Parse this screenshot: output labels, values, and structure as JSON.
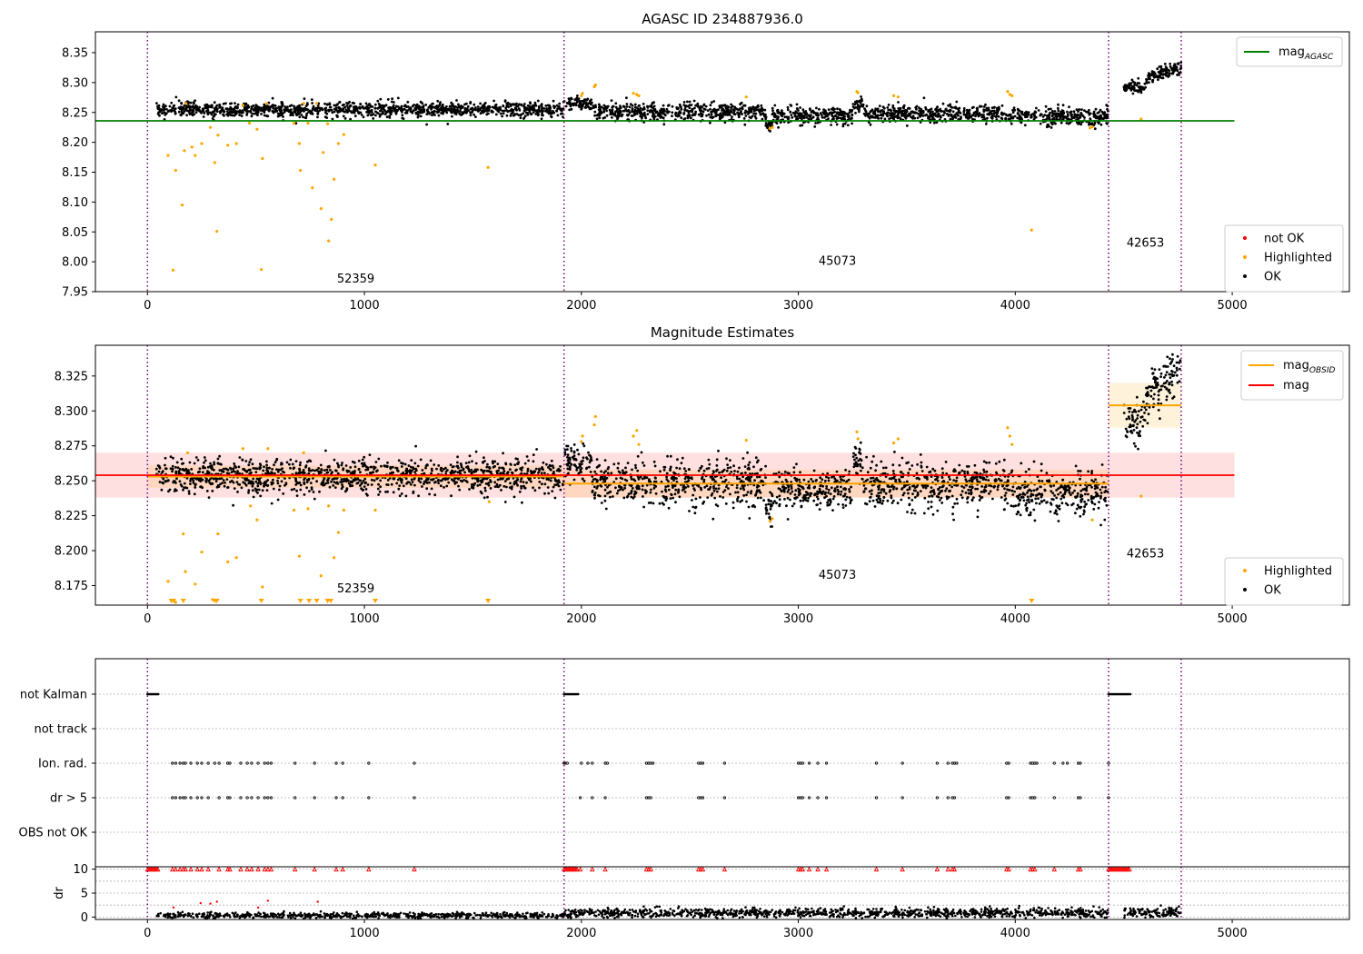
{
  "chart_data": [
    {
      "type": "scatter",
      "title": "AGASC ID 234887936.0",
      "xlim": [
        -240,
        5540
      ],
      "ylim": [
        7.95,
        8.385
      ],
      "xticks": [
        "0",
        "1000",
        "2000",
        "3000",
        "4000",
        "5000"
      ],
      "yticks": [
        "7.95",
        "8.00",
        "8.05",
        "8.10",
        "8.15",
        "8.20",
        "8.25",
        "8.30",
        "8.35"
      ],
      "mag_agasc": 8.236,
      "mag_agasc_x_range": [
        -240,
        5010
      ],
      "obsid_boundaries": [
        0,
        1920,
        4430,
        4765
      ],
      "obsid_labels": [
        {
          "text": "52359",
          "x": 960,
          "y": 7.965
        },
        {
          "text": "45073",
          "x": 3180,
          "y": 7.995
        },
        {
          "text": "42653",
          "x": 4600,
          "y": 8.025
        }
      ],
      "legend_top": [
        {
          "label": "mag",
          "sub": "AGASC",
          "color": "#008000"
        }
      ],
      "legend_bottom": [
        {
          "label": "not OK",
          "color": "#ff0000"
        },
        {
          "label": "Highlighted",
          "color": "#ffa500"
        },
        {
          "label": "OK",
          "color": "#000000"
        }
      ],
      "highlighted_points": [
        [
          95,
          8.178
        ],
        [
          118,
          7.986
        ],
        [
          130,
          8.153
        ],
        [
          160,
          8.095
        ],
        [
          170,
          8.186
        ],
        [
          178,
          8.265
        ],
        [
          205,
          8.192
        ],
        [
          220,
          8.178
        ],
        [
          250,
          8.198
        ],
        [
          290,
          8.225
        ],
        [
          310,
          8.166
        ],
        [
          320,
          8.051
        ],
        [
          325,
          8.212
        ],
        [
          370,
          8.195
        ],
        [
          410,
          8.198
        ],
        [
          440,
          8.262
        ],
        [
          470,
          8.232
        ],
        [
          505,
          8.222
        ],
        [
          525,
          7.987
        ],
        [
          530,
          8.173
        ],
        [
          550,
          8.265
        ],
        [
          675,
          8.232
        ],
        [
          700,
          8.198
        ],
        [
          705,
          8.153
        ],
        [
          720,
          8.265
        ],
        [
          740,
          8.232
        ],
        [
          760,
          8.124
        ],
        [
          780,
          8.265
        ],
        [
          800,
          8.089
        ],
        [
          810,
          8.183
        ],
        [
          830,
          8.231
        ],
        [
          835,
          8.035
        ],
        [
          848,
          8.071
        ],
        [
          860,
          8.138
        ],
        [
          880,
          8.198
        ],
        [
          905,
          8.213
        ],
        [
          1050,
          8.162
        ],
        [
          1570,
          8.158
        ],
        [
          4075,
          8.053
        ],
        [
          4580,
          8.239
        ],
        [
          2000,
          8.278
        ],
        [
          2005,
          8.282
        ],
        [
          2060,
          8.293
        ],
        [
          2065,
          8.296
        ],
        [
          2240,
          8.282
        ],
        [
          2255,
          8.28
        ],
        [
          2265,
          8.278
        ],
        [
          2760,
          8.276
        ],
        [
          2870,
          8.223
        ],
        [
          2880,
          8.225
        ],
        [
          3270,
          8.285
        ],
        [
          3275,
          8.283
        ],
        [
          3440,
          8.278
        ],
        [
          3460,
          8.276
        ],
        [
          3965,
          8.285
        ],
        [
          3975,
          8.28
        ],
        [
          3985,
          8.278
        ],
        [
          4345,
          8.224
        ],
        [
          4355,
          8.226
        ]
      ],
      "ok_segments": [
        {
          "x": [
            40,
            1920
          ],
          "y": 8.255,
          "noise": 0.006,
          "n": 1200
        },
        {
          "x": [
            1920,
            2050
          ],
          "y": 8.265,
          "noise": 0.006,
          "n": 80
        },
        {
          "x": [
            2050,
            2850
          ],
          "y": 8.252,
          "noise": 0.007,
          "n": 500
        },
        {
          "x": [
            2850,
            2880
          ],
          "y": 8.228,
          "noise": 0.006,
          "n": 25
        },
        {
          "x": [
            2880,
            3250
          ],
          "y": 8.245,
          "noise": 0.007,
          "n": 240
        },
        {
          "x": [
            3250,
            3300
          ],
          "y": 8.262,
          "noise": 0.006,
          "n": 35
        },
        {
          "x": [
            3300,
            3950
          ],
          "y": 8.248,
          "noise": 0.007,
          "n": 420
        },
        {
          "x": [
            3950,
            4430
          ],
          "y": 8.243,
          "noise": 0.007,
          "n": 300
        },
        {
          "x": [
            4500,
            4600
          ],
          "y": 8.29,
          "noise": 0.006,
          "n": 60
        },
        {
          "x": [
            4600,
            4765
          ],
          "y": 8.315,
          "noise": 0.006,
          "n": 110
        }
      ]
    },
    {
      "type": "scatter",
      "title": "Magnitude Estimates",
      "xlim": [
        -240,
        5540
      ],
      "ylim": [
        8.161,
        8.347
      ],
      "xticks": [
        "0",
        "1000",
        "2000",
        "3000",
        "4000",
        "5000"
      ],
      "yticks": [
        "8.175",
        "8.200",
        "8.225",
        "8.250",
        "8.275",
        "8.300",
        "8.325"
      ],
      "mag": 8.254,
      "mag_band": [
        8.238,
        8.27
      ],
      "mag_x_range": [
        -240,
        5010
      ],
      "obsid_mags": [
        {
          "x": [
            0,
            1920
          ],
          "mag": 8.253,
          "band": [
            8.245,
            8.261
          ]
        },
        {
          "x": [
            1920,
            4430
          ],
          "mag": 8.248,
          "band": [
            8.238,
            8.258
          ]
        },
        {
          "x": [
            4430,
            4765
          ],
          "mag": 8.304,
          "band": [
            8.288,
            8.32
          ]
        }
      ],
      "obsid_boundaries": [
        0,
        1920,
        4430,
        4765
      ],
      "obsid_labels": [
        {
          "text": "52359",
          "x": 960,
          "y": 8.17
        },
        {
          "text": "45073",
          "x": 3180,
          "y": 8.18
        },
        {
          "text": "42653",
          "x": 4600,
          "y": 8.195
        }
      ],
      "legend_top": [
        {
          "label": "mag",
          "sub": "OBSID",
          "color": "#ffa500"
        },
        {
          "label": "mag",
          "sub": "",
          "color": "#ff0000"
        }
      ],
      "legend_bottom": [
        {
          "label": "Highlighted",
          "color": "#ffa500"
        },
        {
          "label": "OK",
          "color": "#000000"
        }
      ],
      "lower_limit_markers": [
        110,
        120,
        165,
        310,
        320,
        525,
        705,
        745,
        780,
        830,
        845,
        1050,
        1570,
        4075
      ],
      "highlighted_points": [
        [
          95,
          8.178
        ],
        [
          130,
          8.163
        ],
        [
          165,
          8.212
        ],
        [
          175,
          8.185
        ],
        [
          185,
          8.27
        ],
        [
          220,
          8.176
        ],
        [
          250,
          8.199
        ],
        [
          300,
          8.165
        ],
        [
          325,
          8.212
        ],
        [
          370,
          8.192
        ],
        [
          410,
          8.195
        ],
        [
          440,
          8.273
        ],
        [
          475,
          8.232
        ],
        [
          505,
          8.222
        ],
        [
          530,
          8.174
        ],
        [
          555,
          8.273
        ],
        [
          675,
          8.229
        ],
        [
          700,
          8.196
        ],
        [
          720,
          8.27
        ],
        [
          740,
          8.23
        ],
        [
          800,
          8.182
        ],
        [
          835,
          8.232
        ],
        [
          860,
          8.195
        ],
        [
          880,
          8.213
        ],
        [
          905,
          8.229
        ],
        [
          1050,
          8.229
        ],
        [
          1575,
          8.235
        ],
        [
          4580,
          8.239
        ],
        [
          2000,
          8.278
        ],
        [
          2005,
          8.282
        ],
        [
          2060,
          8.29
        ],
        [
          2065,
          8.296
        ],
        [
          2240,
          8.282
        ],
        [
          2255,
          8.286
        ],
        [
          2265,
          8.276
        ],
        [
          2760,
          8.279
        ],
        [
          2870,
          8.221
        ],
        [
          2880,
          8.223
        ],
        [
          3270,
          8.285
        ],
        [
          3275,
          8.28
        ],
        [
          3440,
          8.277
        ],
        [
          3460,
          8.28
        ],
        [
          3965,
          8.288
        ],
        [
          3975,
          8.282
        ],
        [
          3985,
          8.276
        ],
        [
          4355,
          8.222
        ]
      ],
      "ok_segments": [
        {
          "x": [
            40,
            1920
          ],
          "y": 8.253,
          "noise": 0.006,
          "n": 1200
        },
        {
          "x": [
            1920,
            2050
          ],
          "y": 8.262,
          "noise": 0.007,
          "n": 80
        },
        {
          "x": [
            2050,
            2850
          ],
          "y": 8.249,
          "noise": 0.008,
          "n": 500
        },
        {
          "x": [
            2850,
            2880
          ],
          "y": 8.228,
          "noise": 0.006,
          "n": 25
        },
        {
          "x": [
            2880,
            3250
          ],
          "y": 8.243,
          "noise": 0.007,
          "n": 240
        },
        {
          "x": [
            3250,
            3300
          ],
          "y": 8.262,
          "noise": 0.007,
          "n": 35
        },
        {
          "x": [
            3300,
            3950
          ],
          "y": 8.247,
          "noise": 0.008,
          "n": 420
        },
        {
          "x": [
            3950,
            4430
          ],
          "y": 8.242,
          "noise": 0.008,
          "n": 300
        },
        {
          "x": [
            4500,
            4600
          ],
          "y": 8.29,
          "noise": 0.007,
          "n": 60
        },
        {
          "x": [
            4600,
            4765
          ],
          "y": 8.318,
          "noise": 0.008,
          "n": 110
        }
      ]
    },
    {
      "type": "scatter",
      "title": "",
      "xlim": [
        -240,
        5540
      ],
      "flag_rows": [
        "not Kalman",
        "not track",
        "Ion. rad.",
        "dr > 5",
        "OBS not OK"
      ],
      "obsid_boundaries": [
        0,
        1920,
        4430,
        4765
      ],
      "not_kalman_ranges": [
        [
          0,
          50
        ],
        [
          1920,
          1985
        ],
        [
          4430,
          4530
        ]
      ],
      "ion_rad_x": [
        115,
        130,
        150,
        165,
        175,
        200,
        230,
        250,
        280,
        310,
        330,
        370,
        380,
        430,
        460,
        480,
        510,
        540,
        555,
        570,
        680,
        770,
        870,
        900,
        1020,
        1230,
        1920,
        1925,
        1935,
        2000,
        2030,
        2050,
        2110,
        2120,
        2300,
        2310,
        2320,
        2330,
        2540,
        2550,
        2560,
        2660,
        3000,
        3010,
        3020,
        3050,
        3090,
        3130,
        3360,
        3480,
        3640,
        3690,
        3710,
        3720,
        3730,
        3960,
        3970,
        4070,
        4080,
        4090,
        4100,
        4180,
        4220,
        4240,
        4290,
        4300
      ],
      "dr5_x": [
        115,
        130,
        150,
        165,
        175,
        200,
        230,
        250,
        280,
        330,
        370,
        380,
        430,
        460,
        480,
        510,
        540,
        555,
        570,
        680,
        770,
        870,
        900,
        1020,
        1230,
        1995,
        2050,
        2110,
        2300,
        2310,
        2320,
        2540,
        2550,
        2560,
        2660,
        3000,
        3010,
        3020,
        3050,
        3090,
        3130,
        3360,
        3480,
        3640,
        3690,
        3710,
        3720,
        3960,
        3970,
        4070,
        4080,
        4090,
        4180,
        4290,
        4300
      ]
    },
    {
      "type": "scatter",
      "title": "",
      "xlim": [
        -240,
        5540
      ],
      "ylim": [
        -0.5,
        10.5
      ],
      "ylabel": "dr",
      "xticks": [
        "0",
        "1000",
        "2000",
        "3000",
        "4000",
        "5000"
      ],
      "yticks": [
        "0",
        "5",
        "10"
      ],
      "obsid_boundaries": [
        0,
        1920,
        4430,
        4765
      ],
      "capped_ranges": [
        [
          0,
          50
        ],
        [
          1920,
          1985
        ],
        [
          4430,
          4530
        ]
      ],
      "capped_x": [
        115,
        130,
        150,
        165,
        175,
        200,
        230,
        250,
        280,
        330,
        370,
        380,
        430,
        460,
        480,
        510,
        540,
        555,
        570,
        680,
        770,
        870,
        900,
        1020,
        1230,
        1995,
        2050,
        2110,
        2300,
        2310,
        2320,
        2540,
        2550,
        2560,
        2660,
        3000,
        3010,
        3020,
        3050,
        3090,
        3130,
        3360,
        3480,
        3640,
        3690,
        3710,
        3720,
        3960,
        3970,
        4070,
        4080,
        4090,
        4180,
        4290,
        4300
      ],
      "red_points": [
        [
          245,
          2.9
        ],
        [
          290,
          2.8
        ],
        [
          320,
          3.2
        ],
        [
          510,
          2.0
        ],
        [
          555,
          3.4
        ],
        [
          785,
          3.2
        ],
        [
          120,
          2.0
        ]
      ],
      "ok_segments": [
        {
          "x": [
            40,
            1920
          ],
          "y": 0.35,
          "noise": 0.3,
          "n": 700
        },
        {
          "x": [
            1920,
            4430
          ],
          "y": 0.85,
          "noise": 0.5,
          "n": 1100
        },
        {
          "x": [
            4500,
            4765
          ],
          "y": 1.0,
          "noise": 0.5,
          "n": 120
        }
      ]
    }
  ]
}
